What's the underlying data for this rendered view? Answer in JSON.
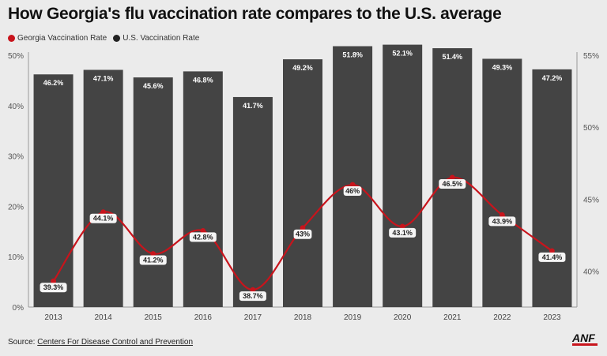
{
  "title": "How Georgia's flu vaccination rate compares to the U.S. average",
  "source": {
    "prefix": "Source: ",
    "link_text": "Centers For Disease Control and Prevention"
  },
  "logo_text": "ANF",
  "colors": {
    "bar": "#444444",
    "line": "#c8141c",
    "background": "#ebebeb"
  },
  "chart_data": {
    "type": "bar+line",
    "categories": [
      "2013",
      "2014",
      "2015",
      "2016",
      "2017",
      "2018",
      "2019",
      "2020",
      "2021",
      "2022",
      "2023"
    ],
    "series": [
      {
        "name": "Georgia Vaccination Rate",
        "type": "line",
        "axis": "right",
        "values": [
          39.3,
          44.1,
          41.2,
          42.8,
          38.7,
          43,
          46,
          43.1,
          46.5,
          43.9,
          41.4
        ],
        "labels": [
          "39.3%",
          "44.1%",
          "41.2%",
          "42.8%",
          "38.7%",
          "43%",
          "46%",
          "43.1%",
          "46.5%",
          "43.9%",
          "41.4%"
        ]
      },
      {
        "name": "U.S. Vaccination Rate",
        "type": "bar",
        "axis": "left",
        "values": [
          46.2,
          47.1,
          45.6,
          46.8,
          41.7,
          49.2,
          51.8,
          52.1,
          51.4,
          49.3,
          47.2
        ],
        "labels": [
          "46.2%",
          "47.1%",
          "45.6%",
          "46.8%",
          "41.7%",
          "49.2%",
          "51.8%",
          "52.1%",
          "51.4%",
          "49.3%",
          "47.2%"
        ]
      }
    ],
    "left_axis": {
      "ylim": [
        0,
        50
      ],
      "ticks": [
        "0%",
        "10%",
        "20%",
        "30%",
        "40%",
        "50%"
      ]
    },
    "right_axis": {
      "ylim": [
        37.5,
        55
      ],
      "ticks": [
        "40%",
        "45%",
        "50%",
        "55%"
      ]
    },
    "legend_position": "top-left",
    "grid": false
  }
}
